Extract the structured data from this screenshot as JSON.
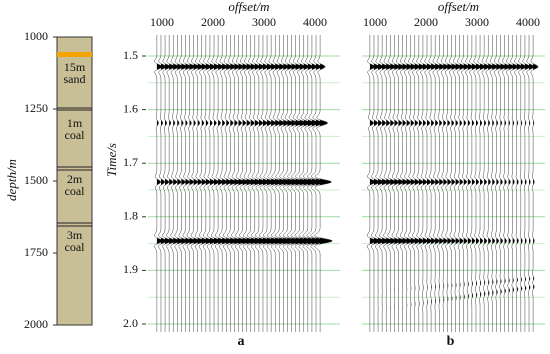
{
  "column": {
    "axis_label": "depth/m",
    "ticks": [
      1000,
      1250,
      1500,
      1750,
      2000
    ],
    "layers": [
      {
        "thickness": "15m",
        "lithology": "sand"
      },
      {
        "thickness": "1m",
        "lithology": "coal"
      },
      {
        "thickness": "2m",
        "lithology": "coal"
      },
      {
        "thickness": "3m",
        "lithology": "coal"
      }
    ]
  },
  "panels": [
    {
      "label": "a",
      "x_title": "offset/m",
      "x_ticks": [
        1000,
        2000,
        3000,
        4000
      ],
      "y_title": "Time/s",
      "y_ticks": [
        1.5,
        1.6,
        1.7,
        1.8,
        1.9,
        {
          "value": 2,
          "label": "2.0"
        }
      ]
    },
    {
      "label": "b",
      "x_title": "offset/m",
      "x_ticks": [
        1000,
        2000,
        3000,
        4000
      ]
    }
  ]
}
